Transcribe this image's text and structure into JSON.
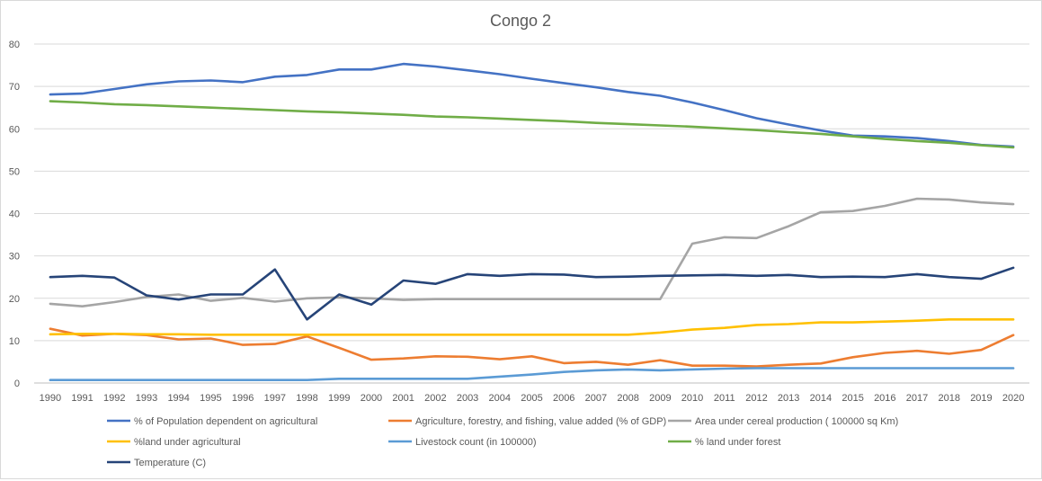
{
  "chart_data": {
    "type": "line",
    "title": "Congo 2",
    "xlabel": "",
    "ylabel": "",
    "ylim": [
      0,
      80
    ],
    "yticks": [
      0,
      10,
      20,
      30,
      40,
      50,
      60,
      70,
      80
    ],
    "grid": true,
    "legend_position": "bottom",
    "categories": [
      "1990",
      "1991",
      "1992",
      "1993",
      "1994",
      "1995",
      "1996",
      "1997",
      "1998",
      "1999",
      "2000",
      "2001",
      "2002",
      "2003",
      "2004",
      "2005",
      "2006",
      "2007",
      "2008",
      "2009",
      "2010",
      "2011",
      "2012",
      "2013",
      "2014",
      "2015",
      "2016",
      "2017",
      "2018",
      "2019",
      "2020"
    ],
    "series": [
      {
        "name": "% of Population dependent on agricultural",
        "color": "#4472c4",
        "values": [
          68.1,
          68.3,
          69.4,
          70.5,
          71.2,
          71.4,
          71.0,
          72.3,
          72.7,
          74.0,
          74.0,
          75.3,
          74.7,
          73.8,
          72.9,
          71.8,
          70.8,
          69.8,
          68.7,
          67.8,
          66.2,
          64.4,
          62.5,
          61.0,
          59.6,
          58.4,
          58.2,
          57.8,
          57.1,
          56.2,
          55.8
        ]
      },
      {
        "name": "Agriculture, forestry, and fishing, value added (% of GDP)",
        "color": "#ed7d31",
        "values": [
          12.8,
          11.2,
          11.6,
          11.3,
          10.3,
          10.5,
          9.0,
          9.2,
          11.0,
          8.3,
          5.5,
          5.8,
          6.3,
          6.2,
          5.6,
          6.3,
          4.7,
          5.0,
          4.3,
          5.4,
          4.1,
          4.1,
          3.9,
          4.3,
          4.6,
          6.1,
          7.1,
          7.6,
          6.9,
          7.8,
          11.3
        ]
      },
      {
        "name": "Area under cereal production ( 100000 sq Km)",
        "color": "#a5a5a5",
        "values": [
          18.7,
          18.1,
          19.1,
          20.3,
          20.9,
          19.4,
          20.1,
          19.2,
          20.0,
          20.2,
          20.0,
          19.6,
          19.8,
          19.8,
          19.8,
          19.8,
          19.8,
          19.8,
          19.8,
          19.8,
          32.9,
          34.4,
          34.2,
          37.0,
          40.3,
          40.6,
          41.8,
          43.5,
          43.3,
          42.6,
          42.2
        ]
      },
      {
        "name": "%land under agricultural",
        "color": "#ffc000",
        "values": [
          11.5,
          11.6,
          11.6,
          11.5,
          11.5,
          11.4,
          11.4,
          11.4,
          11.4,
          11.4,
          11.4,
          11.4,
          11.4,
          11.4,
          11.4,
          11.4,
          11.4,
          11.4,
          11.4,
          11.9,
          12.6,
          13.0,
          13.7,
          13.9,
          14.3,
          14.3,
          14.5,
          14.7,
          15.0,
          15.0,
          15.0
        ]
      },
      {
        "name": "Livestock count (in 100000)",
        "color": "#5b9bd5",
        "values": [
          0.7,
          0.7,
          0.7,
          0.7,
          0.7,
          0.7,
          0.7,
          0.7,
          0.7,
          1.0,
          1.0,
          1.0,
          1.0,
          1.0,
          1.5,
          2.0,
          2.6,
          3.0,
          3.2,
          3.0,
          3.2,
          3.4,
          3.5,
          3.5,
          3.5,
          3.5,
          3.5,
          3.5,
          3.5,
          3.5,
          3.5
        ]
      },
      {
        "name": "% land under forest",
        "color": "#70ad47",
        "values": [
          66.5,
          66.2,
          65.8,
          65.6,
          65.3,
          65.0,
          64.7,
          64.4,
          64.1,
          63.9,
          63.6,
          63.3,
          62.9,
          62.7,
          62.4,
          62.1,
          61.8,
          61.4,
          61.1,
          60.8,
          60.5,
          60.1,
          59.7,
          59.2,
          58.8,
          58.2,
          57.6,
          57.1,
          56.7,
          56.1,
          55.6
        ]
      },
      {
        "name": "Temperature (C)",
        "color": "#264478",
        "values": [
          25.0,
          25.3,
          24.9,
          20.7,
          19.7,
          20.9,
          20.9,
          26.8,
          15.0,
          20.9,
          18.5,
          24.2,
          23.4,
          25.7,
          25.3,
          25.7,
          25.6,
          25.0,
          25.1,
          25.3,
          25.4,
          25.5,
          25.3,
          25.5,
          25.0,
          25.1,
          25.0,
          25.7,
          25.0,
          24.6,
          27.2
        ]
      }
    ]
  }
}
